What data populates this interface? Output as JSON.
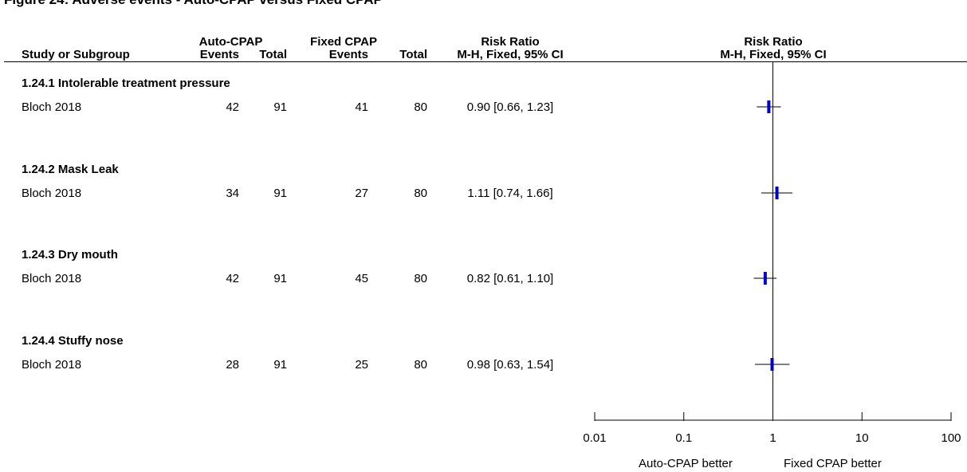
{
  "title": "Figure 24: Adverse events - Auto-CPAP versus Fixed CPAP",
  "header": {
    "group1": "Auto-CPAP",
    "group2": "Fixed CPAP",
    "effect_col": "Risk Ratio",
    "plot_col": "Risk Ratio",
    "study_col": "Study or Subgroup",
    "events1": "Events",
    "total1": "Total",
    "events2": "Events",
    "total2": "Total",
    "method": "M-H, Fixed, 95% CI",
    "plot_method": "M-H, Fixed, 95% CI"
  },
  "favours": {
    "left": "Auto-CPAP better",
    "right": "Fixed CPAP better"
  },
  "chart_data": {
    "type": "forest",
    "x_scale": "log",
    "xlim": [
      0.01,
      100
    ],
    "xticks": [
      "0.01",
      "0.1",
      "1",
      "10",
      "100"
    ],
    "reference_line": 1,
    "marker_color": "#0000cc",
    "subgroups": [
      {
        "label": "1.24.1 Intolerable treatment pressure",
        "study": "Bloch 2018",
        "e1": "42",
        "n1": "91",
        "e2": "41",
        "n2": "80",
        "ci_text": "0.90 [0.66, 1.23]",
        "rr": 0.9,
        "lo": 0.66,
        "hi": 1.23
      },
      {
        "label": "1.24.2 Mask Leak",
        "study": "Bloch 2018",
        "e1": "34",
        "n1": "91",
        "e2": "27",
        "n2": "80",
        "ci_text": "1.11 [0.74, 1.66]",
        "rr": 1.11,
        "lo": 0.74,
        "hi": 1.66
      },
      {
        "label": "1.24.3 Dry mouth",
        "study": "Bloch 2018",
        "e1": "42",
        "n1": "91",
        "e2": "45",
        "n2": "80",
        "ci_text": "0.82 [0.61, 1.10]",
        "rr": 0.82,
        "lo": 0.61,
        "hi": 1.1
      },
      {
        "label": "1.24.4 Stuffy nose",
        "study": "Bloch 2018",
        "e1": "28",
        "n1": "91",
        "e2": "25",
        "n2": "80",
        "ci_text": "0.98 [0.63, 1.54]",
        "rr": 0.98,
        "lo": 0.63,
        "hi": 1.54
      }
    ]
  }
}
